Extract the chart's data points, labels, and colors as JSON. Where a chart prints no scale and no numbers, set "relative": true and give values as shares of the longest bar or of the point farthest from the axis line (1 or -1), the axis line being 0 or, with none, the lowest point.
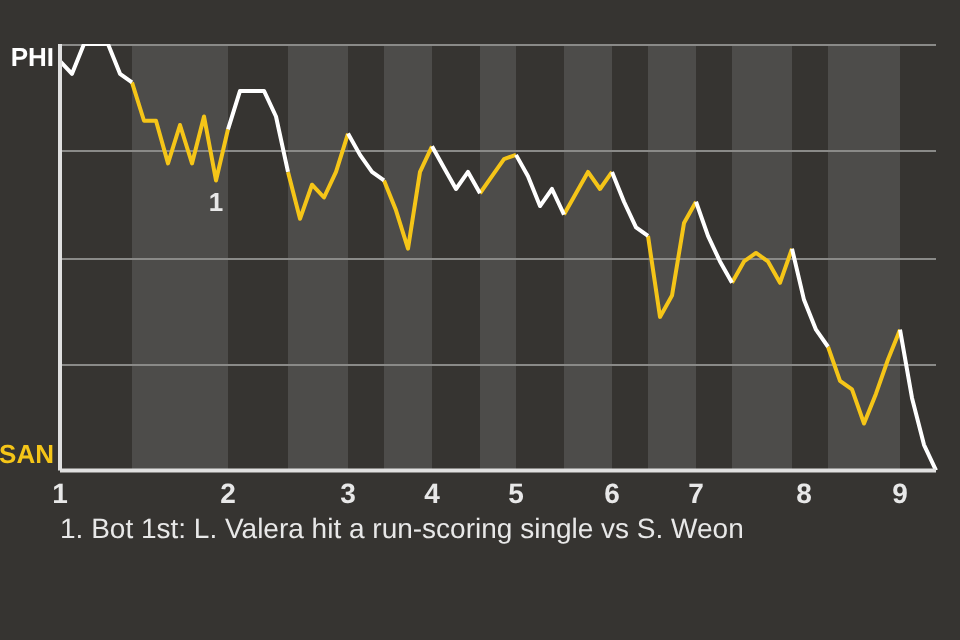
{
  "chart_data": {
    "type": "line",
    "relative": true,
    "tick_labels": "x",
    "categories": [
      "1",
      null,
      null,
      null,
      null,
      null,
      null,
      null,
      null,
      null,
      null,
      null,
      null,
      null,
      "2",
      null,
      null,
      null,
      null,
      null,
      null,
      null,
      null,
      null,
      "3",
      null,
      null,
      null,
      null,
      null,
      null,
      "4",
      null,
      null,
      null,
      null,
      null,
      null,
      "5",
      null,
      null,
      null,
      null,
      null,
      null,
      null,
      "6",
      null,
      null,
      null,
      null,
      null,
      null,
      "7",
      null,
      null,
      null,
      null,
      null,
      null,
      null,
      null,
      "8",
      null,
      null,
      null,
      null,
      null,
      null,
      null,
      "9",
      null,
      null,
      null
    ],
    "grid": "y",
    "legend": "left",
    "marker": "none",
    "line_style": "solid",
    "series": [
      {
        "name": "PHI",
        "color": "#ffffff",
        "values": [
          0.96,
          0.93,
          1,
          1,
          1,
          0.93,
          0.91,
          null,
          null,
          null,
          null,
          null,
          null,
          null,
          0.8,
          0.89,
          0.89,
          0.89,
          0.83,
          0.7,
          null,
          null,
          null,
          null,
          0.79,
          0.74,
          0.7,
          0.68,
          null,
          null,
          null,
          0.76,
          0.71,
          0.66,
          0.7,
          0.65,
          null,
          null,
          0.74,
          0.69,
          0.62,
          0.66,
          0.6,
          null,
          null,
          null,
          0.7,
          0.63,
          0.57,
          0.55,
          null,
          null,
          null,
          0.63,
          0.55,
          0.49,
          0.44,
          null,
          null,
          null,
          null,
          0.52,
          0.4,
          0.33,
          0.29,
          null,
          null,
          null,
          null,
          null,
          0.33,
          0.17,
          0.06,
          0
        ]
      },
      {
        "name": "SAN",
        "color": "#f5c518",
        "values": [
          null,
          null,
          null,
          null,
          null,
          null,
          0.91,
          0.82,
          0.82,
          0.72,
          0.81,
          0.72,
          0.83,
          0.68,
          0.8,
          null,
          null,
          null,
          null,
          0.7,
          0.59,
          0.67,
          0.64,
          0.7,
          0.79,
          null,
          null,
          0.68,
          0.61,
          0.52,
          0.7,
          0.76,
          null,
          null,
          null,
          0.65,
          0.69,
          0.73,
          0.74,
          null,
          null,
          null,
          0.6,
          0.65,
          0.7,
          0.66,
          0.7,
          null,
          null,
          0.55,
          0.36,
          0.41,
          0.58,
          0.63,
          null,
          null,
          0.44,
          0.49,
          0.51,
          0.49,
          0.44,
          0.52,
          null,
          null,
          0.29,
          0.21,
          0.19,
          0.11,
          0.18,
          0.26,
          0.33,
          null,
          null,
          null
        ]
      }
    ],
    "annotations": [
      "1",
      "1. Bot 1st: L. Valera hit a run-scoring single vs S. Weon"
    ]
  }
}
